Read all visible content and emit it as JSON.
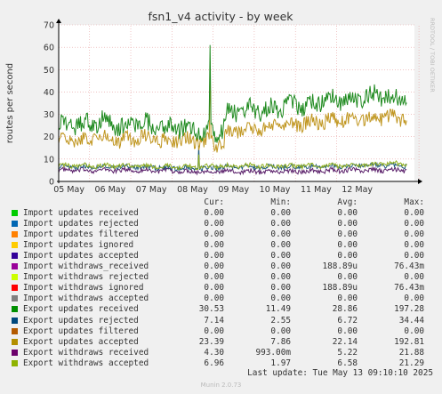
{
  "chart_data": {
    "type": "line",
    "title": "fsn1_v4 activity - by week",
    "ylabel": "routes per second",
    "xlabel": "",
    "ylim": [
      0,
      70
    ],
    "yticks": [
      0,
      10,
      20,
      30,
      40,
      50,
      60,
      70
    ],
    "x_range": [
      "2025-05-04 18:00",
      "2025-05-13 09:10"
    ],
    "xticks": [
      "05 May",
      "06 May",
      "07 May",
      "08 May",
      "09 May",
      "10 May",
      "11 May",
      "12 May"
    ],
    "grid": true,
    "side_label": "RRDTOOL / TOBI OETIKER",
    "series": [
      {
        "name": "Export updates received",
        "color": "#1f8a1f",
        "x_days": [
          0,
          0.5,
          1,
          1.5,
          2,
          2.5,
          3,
          3.5,
          3.75,
          4,
          4.1,
          4.5,
          5,
          5.5,
          6,
          6.5,
          7,
          7.5,
          8,
          8.45
        ],
        "y": [
          26,
          25,
          27,
          24,
          26,
          24,
          24,
          22,
          22,
          23,
          30,
          32,
          32,
          34,
          34,
          37,
          36,
          38,
          38,
          37
        ],
        "spikes": [
          {
            "x_day": 3.68,
            "y": 61
          }
        ]
      },
      {
        "name": "Export updates accepted",
        "color": "#c09620",
        "x_days": [
          0,
          0.5,
          1,
          1.5,
          2,
          2.5,
          3,
          3.5,
          3.75,
          4,
          4.1,
          4.5,
          5,
          5.5,
          6,
          6.5,
          7,
          7.5,
          8,
          8.45
        ],
        "y": [
          19,
          18,
          20,
          18,
          20,
          18,
          19,
          18,
          17,
          17,
          22,
          24,
          24,
          25,
          26,
          27,
          28,
          28,
          29,
          28
        ],
        "spikes": [
          {
            "x_day": 3.68,
            "y": 54
          }
        ]
      },
      {
        "name": "Export withdraws accepted",
        "color": "#8faf1f",
        "x_days": [
          0,
          1,
          2,
          3,
          3.5,
          4,
          5,
          6,
          7,
          8,
          8.45
        ],
        "y": [
          7,
          7,
          7,
          6.5,
          6.5,
          7,
          7,
          7,
          7,
          8,
          8
        ],
        "spikes": [
          {
            "x_day": 3.4,
            "y": 12
          }
        ]
      },
      {
        "name": "Export updates rejected",
        "color": "#1f5a7a",
        "x_days": [
          0,
          1,
          2,
          3,
          3.5,
          4,
          5,
          6,
          7,
          8,
          8.45
        ],
        "y": [
          6.5,
          6.5,
          6.5,
          6,
          6,
          6.5,
          6.5,
          6.5,
          7,
          7,
          7
        ],
        "spikes": [
          {
            "x_day": 3.4,
            "y": 16
          }
        ]
      },
      {
        "name": "Export withdraws received",
        "color": "#5a1f6a",
        "x_days": [
          0,
          1,
          2,
          3,
          3.5,
          4,
          5,
          6,
          7,
          8,
          8.45
        ],
        "y": [
          5,
          5,
          5,
          4.5,
          4.5,
          4.5,
          4.5,
          4.5,
          5,
          5,
          5
        ],
        "spikes": []
      }
    ]
  },
  "legend": {
    "headers": {
      "cur": "Cur:",
      "min": "Min:",
      "avg": "Avg:",
      "max": "Max:"
    },
    "rows": [
      {
        "name": "Import updates received",
        "color": "#00cc00",
        "cur": "0.00",
        "min": "0.00",
        "avg": "0.00",
        "max": "0.00"
      },
      {
        "name": "Import updates rejected",
        "color": "#0066b3",
        "cur": "0.00",
        "min": "0.00",
        "avg": "0.00",
        "max": "0.00"
      },
      {
        "name": "Import updates filtered",
        "color": "#ff8000",
        "cur": "0.00",
        "min": "0.00",
        "avg": "0.00",
        "max": "0.00"
      },
      {
        "name": "Import updates ignored",
        "color": "#ffcc00",
        "cur": "0.00",
        "min": "0.00",
        "avg": "0.00",
        "max": "0.00"
      },
      {
        "name": "Import updates accepted",
        "color": "#330099",
        "cur": "0.00",
        "min": "0.00",
        "avg": "0.00",
        "max": "0.00"
      },
      {
        "name": "Import withdraws_received",
        "color": "#990099",
        "cur": "0.00",
        "min": "0.00",
        "avg": "188.89u",
        "max": "76.43m"
      },
      {
        "name": "Import withdraws rejected",
        "color": "#ccff00",
        "cur": "0.00",
        "min": "0.00",
        "avg": "0.00",
        "max": "0.00"
      },
      {
        "name": "Import withdraws ignored",
        "color": "#ff0000",
        "cur": "0.00",
        "min": "0.00",
        "avg": "188.89u",
        "max": "76.43m"
      },
      {
        "name": "Import withdraws accepted",
        "color": "#808080",
        "cur": "0.00",
        "min": "0.00",
        "avg": "0.00",
        "max": "0.00"
      },
      {
        "name": "Export updates received",
        "color": "#008f00",
        "cur": "30.53",
        "min": "11.49",
        "avg": "28.86",
        "max": "197.28"
      },
      {
        "name": "Export updates rejected",
        "color": "#00487d",
        "cur": "7.14",
        "min": "2.55",
        "avg": "6.72",
        "max": "34.44"
      },
      {
        "name": "Export updates filtered",
        "color": "#b35a00",
        "cur": "0.00",
        "min": "0.00",
        "avg": "0.00",
        "max": "0.00"
      },
      {
        "name": "Export updates accepted",
        "color": "#b38f00",
        "cur": "23.39",
        "min": "7.86",
        "avg": "22.14",
        "max": "192.81"
      },
      {
        "name": "Export withdraws received",
        "color": "#6b006b",
        "cur": "4.30",
        "min": "993.00m",
        "avg": "5.22",
        "max": "21.88"
      },
      {
        "name": "Export withdraws accepted",
        "color": "#8fb300",
        "cur": "6.96",
        "min": "1.97",
        "avg": "6.58",
        "max": "21.29"
      }
    ]
  },
  "last_update": "Last update: Tue May 13 09:10:10 2025",
  "footer": "Munin 2.0.73"
}
